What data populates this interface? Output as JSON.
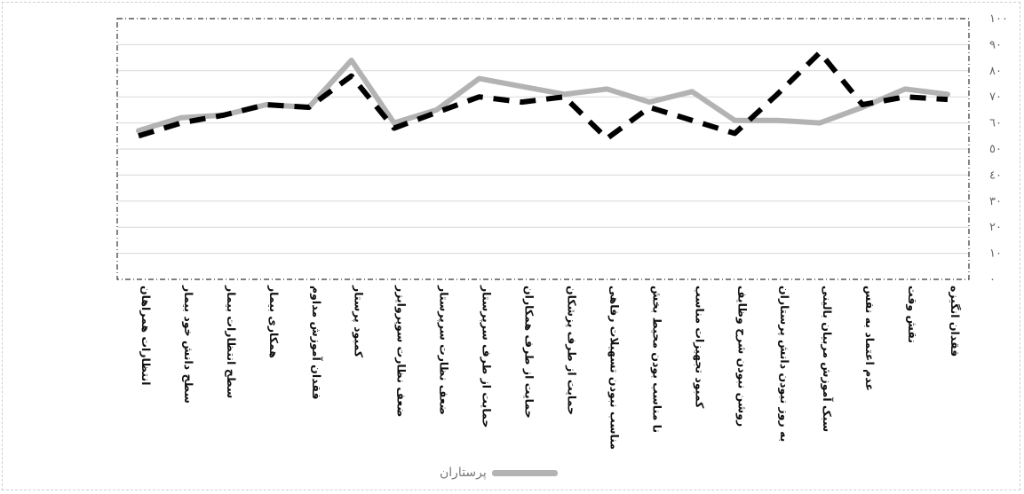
{
  "chart_data": {
    "type": "line",
    "title": "",
    "xlabel": "",
    "ylabel": "",
    "ylim": [
      0,
      100
    ],
    "ytick_labels": [
      "٠",
      "١٠",
      "٢٠",
      "٣٠",
      "٤٠",
      "٥٠",
      "٦٠",
      "٧٠",
      "٨٠",
      "٩٠",
      "١٠٠"
    ],
    "categories": [
      "انتظارات همراهان",
      "سطح دانش خود بیمار",
      "سطح انتظارات بیمار",
      "همکاری بیمار",
      "فقدان آموزش مداوم",
      "کمبود پرستار",
      "ضعف نظارت سوپروایزر",
      "ضعف نظارت سرپرستار",
      "حمایت از طرف سرپرستار",
      "حمایت از طرف همکاران",
      "حمایت از طرف پزشکان",
      "مناسب نبودن تسهیلات رفاهی",
      "نا مناسب بودن محیط بخش",
      "کمبود تجهیزات مناسب",
      "روشن نبودن شرح وظایف",
      "به روز نبودن دانش پرستاران",
      "سبک آموزش مربیان بالینی",
      "عدم اعتماد به نفس",
      "نقش وقت",
      "فقدان انگیزه"
    ],
    "series": [
      {
        "name": "پرستاران",
        "style": "solid",
        "color": "#b3b3b3",
        "values": [
          57,
          62,
          63,
          67,
          66,
          84,
          60,
          65,
          77,
          74,
          71,
          73,
          68,
          72,
          61,
          61,
          60,
          66,
          73,
          71
        ]
      },
      {
        "name": "",
        "style": "dashed",
        "color": "#000000",
        "values": [
          55,
          60,
          63,
          67,
          66,
          78,
          58,
          64,
          70,
          68,
          70,
          54,
          66,
          61,
          56,
          71,
          87,
          67,
          70,
          69
        ]
      }
    ],
    "grid": true,
    "legend_position": "bottom"
  }
}
